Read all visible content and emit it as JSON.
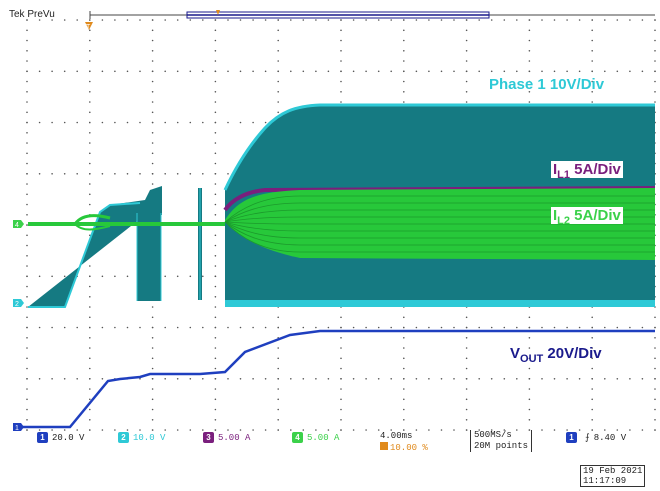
{
  "header": {
    "status": "Tek PreVu"
  },
  "labels": {
    "phase1": {
      "text": "Phase 1 10V/Div",
      "color": "#2ec9d6"
    },
    "il1": {
      "main": "I",
      "sub": "L1",
      "rest": " 5A/Div",
      "color": "#7a1f7d"
    },
    "il2": {
      "main": "I",
      "sub": "L2",
      "rest": " 5A/Div",
      "color": "#3bd14a"
    },
    "vout": {
      "main": "V",
      "sub": "OUT",
      "rest": " 20V/Div",
      "color": "#1a1a8c"
    }
  },
  "channel_markers": {
    "ch1": "1",
    "ch2": "2",
    "ch4": "4"
  },
  "readout": {
    "ch1": {
      "num": "1",
      "value": "20.0 V",
      "color": "#1f3fbf"
    },
    "ch2": {
      "num": "2",
      "value": "10.0 V",
      "color": "#2ec9d6"
    },
    "ch3": {
      "num": "3",
      "value": "5.00 A",
      "color": "#7a1f7d"
    },
    "ch4": {
      "num": "4",
      "value": "5.00 A",
      "color": "#3bd14a"
    },
    "timebase": "4.00ms",
    "trigger_pos": "10.00 %",
    "sample_rate": "500MS/s",
    "record_length": "20M points",
    "trigger_src": "1",
    "trigger_level": "8.40 V",
    "date": "19 Feb  2021",
    "time": "11:17:09"
  }
}
